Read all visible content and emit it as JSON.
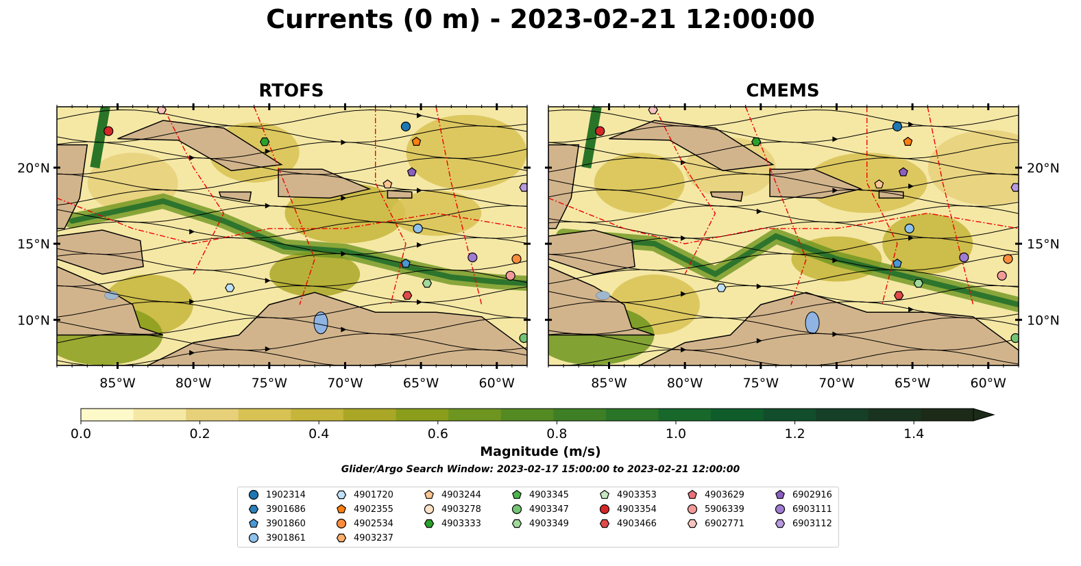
{
  "title": "Currents (0 m) - 2023-02-21 12:00:00",
  "panels": [
    {
      "title": "RTOFS"
    },
    {
      "title": "CMEMS"
    }
  ],
  "axes": {
    "lon_ticks": [
      "85°W",
      "80°W",
      "75°W",
      "70°W",
      "65°W",
      "60°W"
    ],
    "lon_values": [
      -85,
      -80,
      -75,
      -70,
      -65,
      -60
    ],
    "lat_ticks": [
      "20°N",
      "15°N",
      "10°N"
    ],
    "lat_values": [
      20,
      15,
      10
    ],
    "lon_range": [
      -89,
      -58
    ],
    "lat_range": [
      7,
      24
    ]
  },
  "colorbar": {
    "label": "Magnitude (m/s)",
    "tick_labels": [
      "0.0",
      "0.2",
      "0.4",
      "0.6",
      "0.8",
      "1.0",
      "1.2",
      "1.4"
    ],
    "ticks": [
      0.0,
      0.2,
      0.4,
      0.6,
      0.8,
      1.0,
      1.2,
      1.4
    ],
    "range": [
      0,
      1.5
    ],
    "extend": "max",
    "colors": [
      "#fef9c8",
      "#f5e8a5",
      "#e6d07a",
      "#d8c254",
      "#c5b53a",
      "#aaa727",
      "#8a9e1c",
      "#6e9520",
      "#548a22",
      "#3e7f25",
      "#2a7428",
      "#17682a",
      "#0f5c2b",
      "#124e2b",
      "#153f26",
      "#19331f",
      "#1c2a18"
    ]
  },
  "search_window": "Glider/Argo Search Window: 2023-02-17 15:00:00 to 2023-02-21 12:00:00",
  "legend": [
    {
      "id": "1902314",
      "marker": "circle",
      "color": "#1f77b4"
    },
    {
      "id": "3901686",
      "marker": "hexagon",
      "color": "#2c7fb8"
    },
    {
      "id": "3901860",
      "marker": "pentagon",
      "color": "#4a98d6"
    },
    {
      "id": "3901861",
      "marker": "circle",
      "color": "#8ec1ec"
    },
    {
      "id": "4901720",
      "marker": "hexagon",
      "color": "#bfe0f7"
    },
    {
      "id": "4902355",
      "marker": "pentagon",
      "color": "#ff7f0e"
    },
    {
      "id": "4902534",
      "marker": "circle",
      "color": "#fd8d3c"
    },
    {
      "id": "4903237",
      "marker": "hexagon",
      "color": "#fdae6b"
    },
    {
      "id": "4903244",
      "marker": "pentagon",
      "color": "#fdc692"
    },
    {
      "id": "4903278",
      "marker": "circle",
      "color": "#fde2c6"
    },
    {
      "id": "4903333",
      "marker": "hexagon",
      "color": "#2ca02c"
    },
    {
      "id": "4903345",
      "marker": "pentagon",
      "color": "#4cb44c"
    },
    {
      "id": "4903347",
      "marker": "circle",
      "color": "#74c476"
    },
    {
      "id": "4903349",
      "marker": "hexagon",
      "color": "#a1d99b"
    },
    {
      "id": "4903353",
      "marker": "pentagon",
      "color": "#c7e9c0"
    },
    {
      "id": "4903354",
      "marker": "circle",
      "color": "#d62728"
    },
    {
      "id": "4903466",
      "marker": "hexagon",
      "color": "#e04a4a"
    },
    {
      "id": "4903629",
      "marker": "pentagon",
      "color": "#e8707a"
    },
    {
      "id": "5906339",
      "marker": "circle",
      "color": "#f29a9a"
    },
    {
      "id": "6902771",
      "marker": "hexagon",
      "color": "#f8c4c0"
    },
    {
      "id": "6902916",
      "marker": "pentagon",
      "color": "#8c5fbf"
    },
    {
      "id": "6903111",
      "marker": "circle",
      "color": "#a07cd2"
    },
    {
      "id": "6903112",
      "marker": "hexagon",
      "color": "#b89ae0"
    }
  ],
  "floats": [
    {
      "id": "4903354",
      "lon": -85.6,
      "lat": 22.4
    },
    {
      "id": "6902771",
      "lon": -82.1,
      "lat": 23.8
    },
    {
      "id": "4903333",
      "lon": -75.3,
      "lat": 21.7
    },
    {
      "id": "1902314",
      "lon": -66.0,
      "lat": 22.7
    },
    {
      "id": "4902355",
      "lon": -65.3,
      "lat": 21.7
    },
    {
      "id": "6902916",
      "lon": -65.6,
      "lat": 19.7
    },
    {
      "id": "4903244",
      "lon": -67.2,
      "lat": 18.9
    },
    {
      "id": "6903112",
      "lon": -58.2,
      "lat": 18.7
    },
    {
      "id": "3901861",
      "lon": -65.2,
      "lat": 16.0
    },
    {
      "id": "3901860",
      "lon": -66.0,
      "lat": 13.7
    },
    {
      "id": "4902534",
      "lon": -58.7,
      "lat": 14.0
    },
    {
      "id": "6903111",
      "lon": -61.6,
      "lat": 14.1
    },
    {
      "id": "4903349",
      "lon": -64.6,
      "lat": 12.4
    },
    {
      "id": "4903466",
      "lon": -65.9,
      "lat": 11.6
    },
    {
      "id": "5906339",
      "lon": -59.1,
      "lat": 12.9
    },
    {
      "id": "4903347",
      "lon": -58.2,
      "lat": 8.8
    },
    {
      "id": "4901720",
      "lon": -77.6,
      "lat": 12.1
    }
  ]
}
